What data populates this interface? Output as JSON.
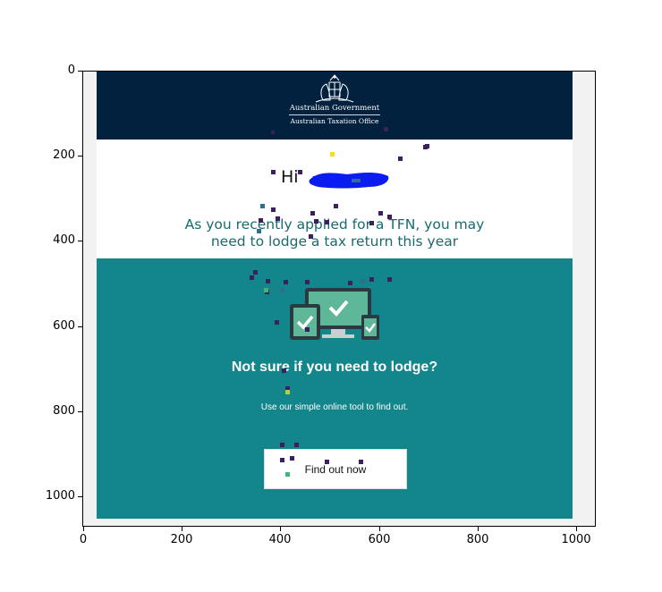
{
  "header": {
    "logo_line1": "Australian Government",
    "logo_line2": "Australian Taxation Office"
  },
  "greeting": {
    "hi": "Hi"
  },
  "intro": {
    "line1": "As you recently applied for a TFN, you may",
    "line2": "need to lodge a tax return this year"
  },
  "promo": {
    "heading": "Not sure if you need to lodge?",
    "subtext": "Use our simple online tool to find out.",
    "cta_label": "Find out now"
  },
  "axes": {
    "y_ticks": [
      "0",
      "200",
      "400",
      "600",
      "800",
      "1000"
    ],
    "x_ticks": [
      "0",
      "200",
      "400",
      "600",
      "800",
      "1000"
    ]
  },
  "colors": {
    "header_bg": "#02213f",
    "teal_bg": "#12868a",
    "intro_text": "#1a6a6e",
    "redaction": "#0a1cf0"
  }
}
